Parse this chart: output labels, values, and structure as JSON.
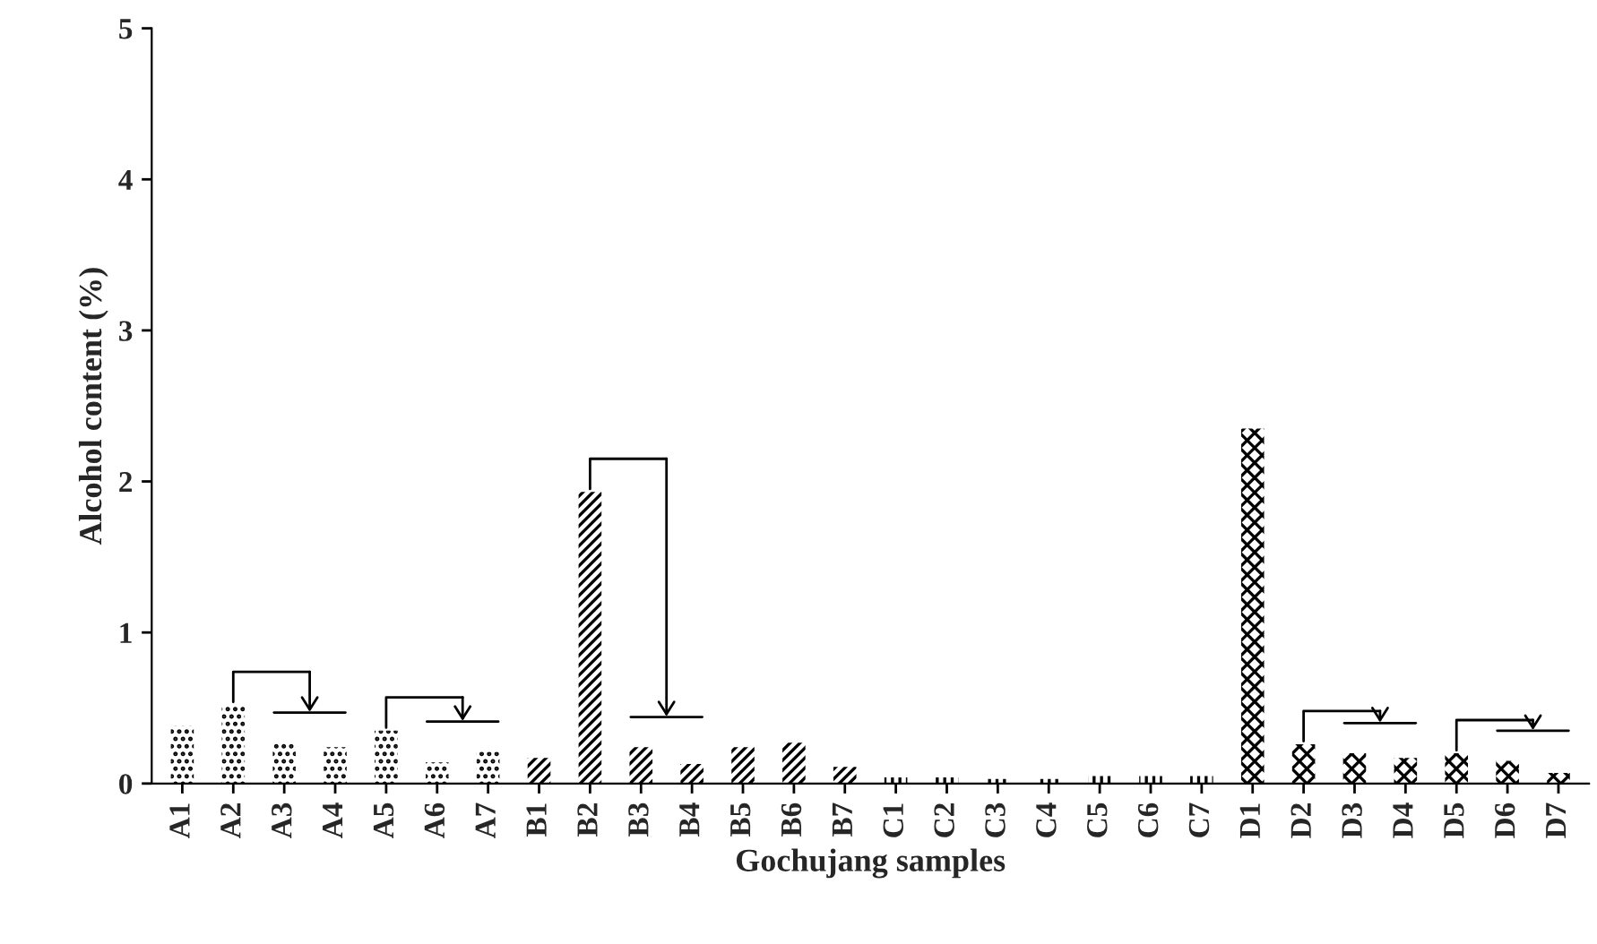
{
  "chart_data": {
    "type": "bar",
    "xlabel": "Gochujang samples",
    "ylabel": "Alcohol content (%)",
    "categories": [
      "A1",
      "A2",
      "A3",
      "A4",
      "A5",
      "A6",
      "A7",
      "B1",
      "B2",
      "B3",
      "B4",
      "B5",
      "B6",
      "B7",
      "C1",
      "C2",
      "C3",
      "C4",
      "C5",
      "C6",
      "C7",
      "D1",
      "D2",
      "D3",
      "D4",
      "D5",
      "D6",
      "D7"
    ],
    "values": [
      0.38,
      0.52,
      0.27,
      0.24,
      0.35,
      0.14,
      0.21,
      0.17,
      1.93,
      0.24,
      0.13,
      0.24,
      0.27,
      0.11,
      0.04,
      0.04,
      0.03,
      0.03,
      0.05,
      0.05,
      0.05,
      2.35,
      0.26,
      0.2,
      0.17,
      0.2,
      0.15,
      0.07
    ],
    "color": "#000000",
    "ylim": [
      0,
      5
    ],
    "yticks": [
      0,
      1,
      2,
      3,
      4,
      5
    ],
    "grid": false,
    "legend": false
  }
}
